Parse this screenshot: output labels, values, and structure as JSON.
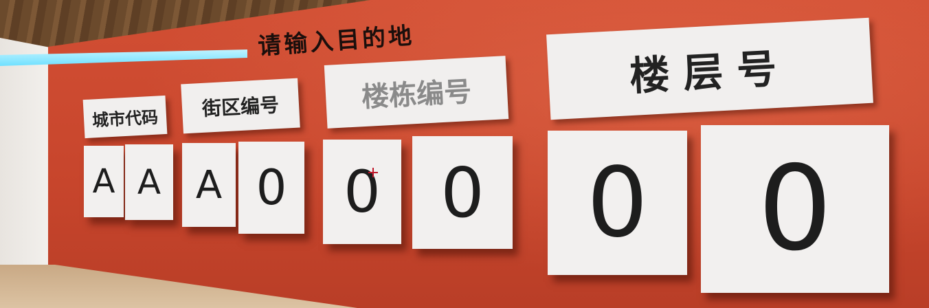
{
  "title": "请输入目的地",
  "labels": {
    "city_code": "城市代码",
    "street_code": "街区编号",
    "building_code": "楼栋编号",
    "floor_number": "楼层号"
  },
  "digits": [
    "A",
    "A",
    "A",
    "0",
    "0",
    "0",
    "0",
    "0"
  ],
  "colors": {
    "wall": "#c9472f",
    "card": "#f2f0ef",
    "light_strip": "#8fe8ff",
    "crosshair": "#c0182a"
  }
}
